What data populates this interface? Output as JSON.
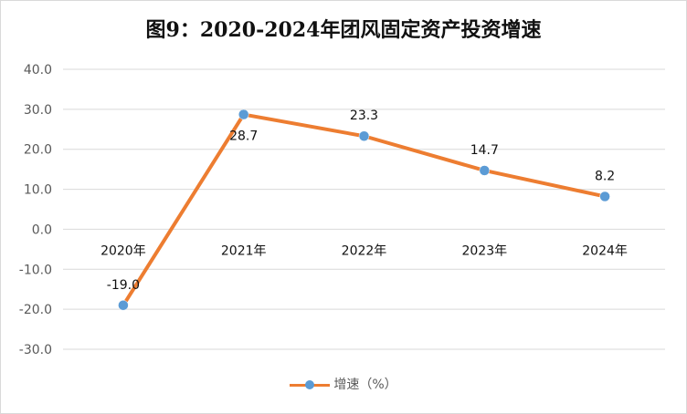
{
  "chart_data": {
    "type": "line",
    "title": "图9：2020-2024年团风固定资产投资增速",
    "categories": [
      "2020年",
      "2021年",
      "2022年",
      "2023年",
      "2024年"
    ],
    "series": [
      {
        "name": "增速（%）",
        "values": [
          -19.0,
          28.7,
          23.3,
          14.7,
          8.2
        ],
        "labels": [
          "-19.0",
          "28.7",
          "23.3",
          "14.7",
          "8.2"
        ],
        "line_color": "#ed7d31",
        "marker_color": "#5b9bd5"
      }
    ],
    "ylim": [
      -30,
      40
    ],
    "yticks": [
      40,
      30,
      20,
      10,
      0,
      -10,
      -20,
      -30
    ],
    "ytick_labels": [
      "40.0",
      "30.0",
      "20.0",
      "10.0",
      "0.0",
      "-10.0",
      "-20.0",
      "-30.0"
    ],
    "grid": true,
    "legend": "bottom"
  }
}
